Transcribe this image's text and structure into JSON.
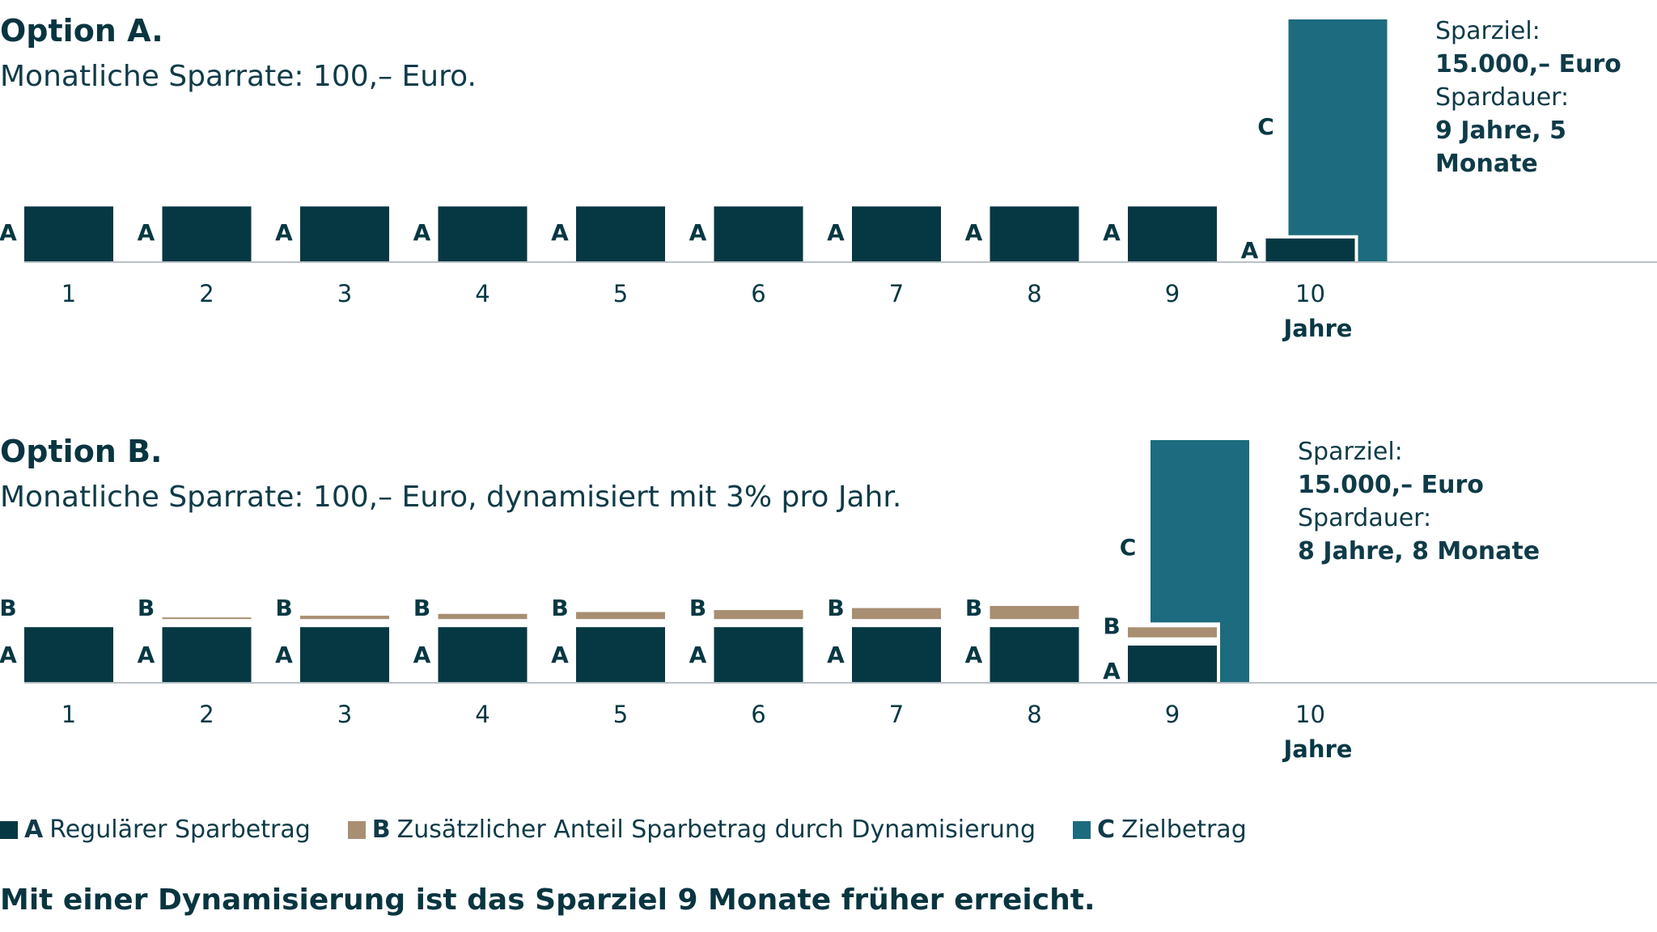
{
  "colors": {
    "A": "#063843",
    "B": "#a88f72",
    "C": "#1c6b7e",
    "axis": "#b8c2c6"
  },
  "chart_data": [
    {
      "type": "bar",
      "title": "Option A.",
      "subtitle": "Monatliche Sparrate: 100,– Euro.",
      "categories": [
        "1",
        "2",
        "3",
        "4",
        "5",
        "6",
        "7",
        "8",
        "9",
        "10"
      ],
      "xlabel": "Jahre",
      "series": [
        {
          "name": "A",
          "values": [
            1200,
            1200,
            1200,
            1200,
            1200,
            1200,
            1200,
            1200,
            1200,
            500
          ]
        },
        {
          "name": "B",
          "values": [
            0,
            0,
            0,
            0,
            0,
            0,
            0,
            0,
            0,
            0
          ]
        }
      ],
      "target": {
        "label": "C",
        "value": 15000,
        "category": "10"
      },
      "info": {
        "goal_label": "Sparziel:",
        "goal_value": "15.000,– Euro",
        "duration_label": "Spardauer:",
        "duration_value": "9 Jahre, 5 Monate"
      },
      "grid": false
    },
    {
      "type": "bar",
      "title": "Option B.",
      "subtitle": "Monatliche Sparrate: 100,– Euro, dynamisiert mit 3% pro Jahr.",
      "categories": [
        "1",
        "2",
        "3",
        "4",
        "5",
        "6",
        "7",
        "8",
        "9",
        "10"
      ],
      "xlabel": "Jahre",
      "series": [
        {
          "name": "A",
          "values": [
            1200,
            1200,
            1200,
            1200,
            1200,
            1200,
            1200,
            1200,
            800,
            0
          ]
        },
        {
          "name": "B",
          "values": [
            0,
            36,
            73,
            113,
            154,
            197,
            241,
            287,
            220,
            0
          ]
        }
      ],
      "target": {
        "label": "C",
        "value": 15000,
        "category": "9"
      },
      "info": {
        "goal_label": "Sparziel:",
        "goal_value": "15.000,– Euro",
        "duration_label": "Spardauer:",
        "duration_value": "8 Jahre, 8 Monate"
      },
      "grid": false
    }
  ],
  "legend": [
    {
      "key": "A",
      "label": "Regulärer Sparbetrag"
    },
    {
      "key": "B",
      "label": "Zusätzlicher Anteil Sparbetrag durch Dynamisierung"
    },
    {
      "key": "C",
      "label": "Zielbetrag"
    }
  ],
  "conclusion": "Mit einer Dynamisierung ist das Sparziel 9 Monate früher erreicht."
}
